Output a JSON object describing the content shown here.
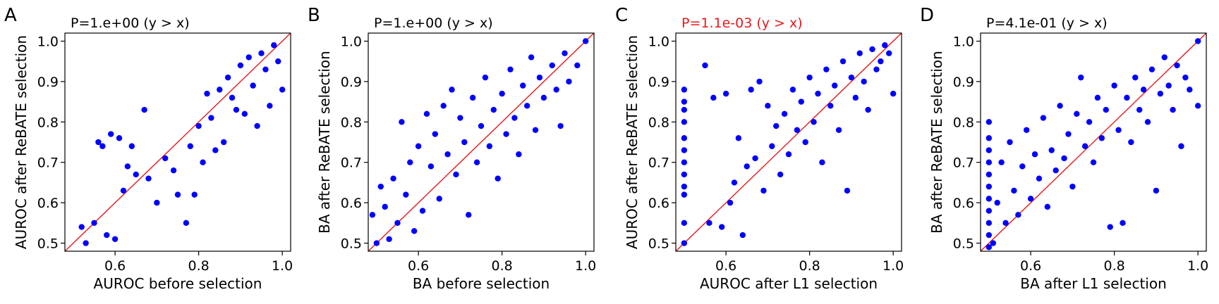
{
  "chart_data": [
    {
      "type": "scatter",
      "panel": "A",
      "annotation": "P=1.e+00 (y > x)",
      "annotation_color": "#000000",
      "xlabel": "AUROC before selection",
      "ylabel": "AUROC after ReBATE selection",
      "xlim": [
        0.48,
        1.02
      ],
      "ylim": [
        0.48,
        1.02
      ],
      "xticks": [
        0.6,
        0.8,
        1.0
      ],
      "xtick_labels": [
        "0.6",
        "0.8",
        "1.0"
      ],
      "yticks": [
        0.5,
        0.6,
        0.7,
        0.8,
        0.9,
        1.0
      ],
      "ytick_labels": [
        "0.5",
        "0.6",
        "0.7",
        "0.8",
        "0.9",
        "1.0"
      ],
      "reference_line": "y = x",
      "point_color": "#0000ff",
      "line_color": "#e41a1c",
      "points": [
        [
          0.52,
          0.54
        ],
        [
          0.53,
          0.5
        ],
        [
          0.55,
          0.55
        ],
        [
          0.56,
          0.75
        ],
        [
          0.57,
          0.74
        ],
        [
          0.58,
          0.52
        ],
        [
          0.59,
          0.77
        ],
        [
          0.6,
          0.51
        ],
        [
          0.61,
          0.76
        ],
        [
          0.62,
          0.63
        ],
        [
          0.63,
          0.69
        ],
        [
          0.64,
          0.74
        ],
        [
          0.65,
          0.67
        ],
        [
          0.67,
          0.83
        ],
        [
          0.68,
          0.66
        ],
        [
          0.7,
          0.6
        ],
        [
          0.72,
          0.71
        ],
        [
          0.74,
          0.68
        ],
        [
          0.75,
          0.62
        ],
        [
          0.77,
          0.55
        ],
        [
          0.78,
          0.74
        ],
        [
          0.79,
          0.62
        ],
        [
          0.8,
          0.79
        ],
        [
          0.81,
          0.7
        ],
        [
          0.82,
          0.87
        ],
        [
          0.83,
          0.81
        ],
        [
          0.84,
          0.73
        ],
        [
          0.85,
          0.88
        ],
        [
          0.86,
          0.75
        ],
        [
          0.87,
          0.91
        ],
        [
          0.88,
          0.86
        ],
        [
          0.89,
          0.83
        ],
        [
          0.9,
          0.94
        ],
        [
          0.91,
          0.82
        ],
        [
          0.92,
          0.96
        ],
        [
          0.93,
          0.89
        ],
        [
          0.94,
          0.79
        ],
        [
          0.95,
          0.97
        ],
        [
          0.96,
          0.93
        ],
        [
          0.97,
          0.84
        ],
        [
          0.98,
          0.99
        ],
        [
          0.99,
          0.95
        ],
        [
          1.0,
          0.88
        ]
      ]
    },
    {
      "type": "scatter",
      "panel": "B",
      "annotation": "P=1.e+00 (y > x)",
      "annotation_color": "#000000",
      "xlabel": "BA before selection",
      "ylabel": "BA after ReBATE selection",
      "xlim": [
        0.48,
        1.02
      ],
      "ylim": [
        0.48,
        1.02
      ],
      "xticks": [
        0.6,
        0.8,
        1.0
      ],
      "xtick_labels": [
        "0.6",
        "0.8",
        "1.0"
      ],
      "yticks": [
        0.5,
        0.6,
        0.7,
        0.8,
        0.9,
        1.0
      ],
      "ytick_labels": [
        "0.5",
        "0.6",
        "0.7",
        "0.8",
        "0.9",
        "1.0"
      ],
      "reference_line": "y = x",
      "point_color": "#0000ff",
      "line_color": "#e41a1c",
      "points": [
        [
          0.49,
          0.57
        ],
        [
          0.5,
          0.5
        ],
        [
          0.51,
          0.64
        ],
        [
          0.52,
          0.59
        ],
        [
          0.53,
          0.51
        ],
        [
          0.54,
          0.66
        ],
        [
          0.55,
          0.55
        ],
        [
          0.56,
          0.8
        ],
        [
          0.57,
          0.62
        ],
        [
          0.58,
          0.7
        ],
        [
          0.59,
          0.53
        ],
        [
          0.6,
          0.74
        ],
        [
          0.61,
          0.58
        ],
        [
          0.62,
          0.82
        ],
        [
          0.63,
          0.69
        ],
        [
          0.64,
          0.77
        ],
        [
          0.65,
          0.61
        ],
        [
          0.66,
          0.84
        ],
        [
          0.67,
          0.72
        ],
        [
          0.68,
          0.88
        ],
        [
          0.69,
          0.67
        ],
        [
          0.7,
          0.81
        ],
        [
          0.71,
          0.75
        ],
        [
          0.72,
          0.57
        ],
        [
          0.73,
          0.86
        ],
        [
          0.74,
          0.7
        ],
        [
          0.75,
          0.79
        ],
        [
          0.76,
          0.91
        ],
        [
          0.77,
          0.74
        ],
        [
          0.78,
          0.83
        ],
        [
          0.79,
          0.66
        ],
        [
          0.8,
          0.87
        ],
        [
          0.81,
          0.77
        ],
        [
          0.82,
          0.93
        ],
        [
          0.83,
          0.81
        ],
        [
          0.84,
          0.72
        ],
        [
          0.85,
          0.89
        ],
        [
          0.86,
          0.84
        ],
        [
          0.87,
          0.96
        ],
        [
          0.88,
          0.78
        ],
        [
          0.89,
          0.91
        ],
        [
          0.9,
          0.86
        ],
        [
          0.92,
          0.94
        ],
        [
          0.93,
          0.88
        ],
        [
          0.94,
          0.79
        ],
        [
          0.95,
          0.97
        ],
        [
          0.96,
          0.9
        ],
        [
          0.98,
          0.94
        ],
        [
          1.0,
          1.0
        ]
      ]
    },
    {
      "type": "scatter",
      "panel": "C",
      "annotation": "P=1.1e-03 (y > x)",
      "annotation_color": "#e41a1c",
      "xlabel": "AUROC after L1 selection",
      "ylabel": "AUROC after ReBATE selection",
      "xlim": [
        0.48,
        1.02
      ],
      "ylim": [
        0.48,
        1.02
      ],
      "xticks": [
        0.6,
        0.8,
        1.0
      ],
      "xtick_labels": [
        "0.6",
        "0.8",
        "1.0"
      ],
      "yticks": [
        0.5,
        0.6,
        0.7,
        0.8,
        0.9,
        1.0
      ],
      "ytick_labels": [
        "0.5",
        "0.6",
        "0.7",
        "0.8",
        "0.9",
        "1.0"
      ],
      "reference_line": "y = x",
      "point_color": "#0000ff",
      "line_color": "#e41a1c",
      "points": [
        [
          0.5,
          0.5
        ],
        [
          0.5,
          0.55
        ],
        [
          0.5,
          0.62
        ],
        [
          0.5,
          0.64
        ],
        [
          0.5,
          0.67
        ],
        [
          0.5,
          0.7
        ],
        [
          0.5,
          0.73
        ],
        [
          0.5,
          0.76
        ],
        [
          0.5,
          0.8
        ],
        [
          0.5,
          0.83
        ],
        [
          0.5,
          0.85
        ],
        [
          0.5,
          0.88
        ],
        [
          0.55,
          0.94
        ],
        [
          0.56,
          0.55
        ],
        [
          0.57,
          0.86
        ],
        [
          0.59,
          0.54
        ],
        [
          0.6,
          0.87
        ],
        [
          0.61,
          0.6
        ],
        [
          0.62,
          0.65
        ],
        [
          0.63,
          0.76
        ],
        [
          0.64,
          0.52
        ],
        [
          0.65,
          0.69
        ],
        [
          0.66,
          0.88
        ],
        [
          0.67,
          0.71
        ],
        [
          0.68,
          0.9
        ],
        [
          0.69,
          0.63
        ],
        [
          0.7,
          0.84
        ],
        [
          0.71,
          0.74
        ],
        [
          0.72,
          0.79
        ],
        [
          0.73,
          0.67
        ],
        [
          0.74,
          0.82
        ],
        [
          0.75,
          0.72
        ],
        [
          0.76,
          0.88
        ],
        [
          0.77,
          0.78
        ],
        [
          0.78,
          0.85
        ],
        [
          0.79,
          0.75
        ],
        [
          0.8,
          0.91
        ],
        [
          0.81,
          0.8
        ],
        [
          0.82,
          0.87
        ],
        [
          0.83,
          0.7
        ],
        [
          0.84,
          0.93
        ],
        [
          0.85,
          0.84
        ],
        [
          0.86,
          0.89
        ],
        [
          0.87,
          0.78
        ],
        [
          0.88,
          0.95
        ],
        [
          0.89,
          0.63
        ],
        [
          0.9,
          0.91
        ],
        [
          0.91,
          0.86
        ],
        [
          0.92,
          0.97
        ],
        [
          0.93,
          0.9
        ],
        [
          0.94,
          0.83
        ],
        [
          0.95,
          0.98
        ],
        [
          0.96,
          0.93
        ],
        [
          0.97,
          0.95
        ],
        [
          0.98,
          0.99
        ],
        [
          0.99,
          0.97
        ],
        [
          1.0,
          0.87
        ]
      ]
    },
    {
      "type": "scatter",
      "panel": "D",
      "annotation": "P=4.1e-01 (y > x)",
      "annotation_color": "#000000",
      "xlabel": "BA after L1 selection",
      "ylabel": "BA after ReBATE selection",
      "xlim": [
        0.48,
        1.02
      ],
      "ylim": [
        0.48,
        1.02
      ],
      "xticks": [
        0.6,
        0.8,
        1.0
      ],
      "xtick_labels": [
        "0.6",
        "0.8",
        "1.0"
      ],
      "yticks": [
        0.5,
        0.6,
        0.7,
        0.8,
        0.9,
        1.0
      ],
      "ytick_labels": [
        "0.5",
        "0.6",
        "0.7",
        "0.8",
        "0.9",
        "1.0"
      ],
      "reference_line": "y = x",
      "point_color": "#0000ff",
      "line_color": "#e41a1c",
      "points": [
        [
          0.5,
          0.49
        ],
        [
          0.5,
          0.52
        ],
        [
          0.5,
          0.55
        ],
        [
          0.5,
          0.58
        ],
        [
          0.5,
          0.61
        ],
        [
          0.5,
          0.64
        ],
        [
          0.5,
          0.67
        ],
        [
          0.5,
          0.7
        ],
        [
          0.5,
          0.73
        ],
        [
          0.5,
          0.76
        ],
        [
          0.5,
          0.8
        ],
        [
          0.51,
          0.5
        ],
        [
          0.52,
          0.6
        ],
        [
          0.53,
          0.7
        ],
        [
          0.54,
          0.55
        ],
        [
          0.55,
          0.75
        ],
        [
          0.56,
          0.63
        ],
        [
          0.57,
          0.57
        ],
        [
          0.58,
          0.69
        ],
        [
          0.59,
          0.78
        ],
        [
          0.6,
          0.61
        ],
        [
          0.61,
          0.72
        ],
        [
          0.62,
          0.66
        ],
        [
          0.63,
          0.81
        ],
        [
          0.64,
          0.59
        ],
        [
          0.65,
          0.73
        ],
        [
          0.66,
          0.68
        ],
        [
          0.67,
          0.84
        ],
        [
          0.68,
          0.71
        ],
        [
          0.69,
          0.77
        ],
        [
          0.7,
          0.64
        ],
        [
          0.71,
          0.82
        ],
        [
          0.72,
          0.91
        ],
        [
          0.73,
          0.74
        ],
        [
          0.74,
          0.8
        ],
        [
          0.75,
          0.7
        ],
        [
          0.76,
          0.86
        ],
        [
          0.77,
          0.76
        ],
        [
          0.78,
          0.83
        ],
        [
          0.79,
          0.54
        ],
        [
          0.8,
          0.89
        ],
        [
          0.81,
          0.78
        ],
        [
          0.82,
          0.55
        ],
        [
          0.83,
          0.86
        ],
        [
          0.84,
          0.75
        ],
        [
          0.85,
          0.91
        ],
        [
          0.86,
          0.83
        ],
        [
          0.87,
          0.88
        ],
        [
          0.88,
          0.8
        ],
        [
          0.89,
          0.93
        ],
        [
          0.9,
          0.63
        ],
        [
          0.91,
          0.87
        ],
        [
          0.92,
          0.96
        ],
        [
          0.93,
          0.89
        ],
        [
          0.94,
          0.83
        ],
        [
          0.95,
          0.94
        ],
        [
          0.96,
          0.74
        ],
        [
          0.97,
          0.91
        ],
        [
          0.98,
          0.88
        ],
        [
          1.0,
          1.0
        ],
        [
          1.0,
          0.84
        ]
      ]
    }
  ]
}
